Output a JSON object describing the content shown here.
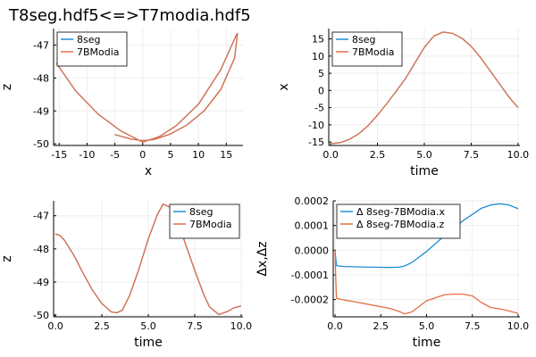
{
  "figure_title": "T8seg.hdf5<=>T7modia.hdf5",
  "colors": {
    "blue": "#1f8dd6",
    "orange": "#e36f47",
    "grid": "#eeeeee",
    "axis": "#000000"
  },
  "chart_data": [
    {
      "id": "p1",
      "type": "line",
      "title": "",
      "xlabel": "x",
      "ylabel": "z",
      "xlim": [
        -16,
        18
      ],
      "ylim": [
        -50.05,
        -46.5
      ],
      "xticks": [
        -15,
        -10,
        -5,
        0,
        5,
        10,
        15
      ],
      "yticks": [
        -50,
        -49,
        -48,
        -47
      ],
      "xtick_labels": [
        "-15",
        "-10",
        "-5",
        "0",
        "5",
        "10",
        "15"
      ],
      "ytick_labels": [
        "-50",
        "-49",
        "-48",
        "-47"
      ],
      "grid": true,
      "legend_position": "top-left",
      "series": [
        {
          "name": "8seg",
          "color": "#1f8dd6",
          "x": [
            -5.0,
            -2.0,
            0.0,
            2.0,
            5.0,
            8.0,
            11.0,
            14.0,
            16.5,
            17.0,
            16.8,
            14.0,
            10.0,
            6.0,
            3.0,
            0.0,
            -4.0,
            -8.0,
            -12.0,
            -15.5
          ],
          "y": [
            -49.72,
            -49.86,
            -49.9,
            -49.87,
            -49.7,
            -49.42,
            -49.0,
            -48.35,
            -47.4,
            -46.65,
            -46.7,
            -47.75,
            -48.8,
            -49.45,
            -49.78,
            -49.95,
            -49.6,
            -49.1,
            -48.4,
            -47.55
          ]
        },
        {
          "name": "7BModia",
          "color": "#e36f47",
          "x": [
            -5.0,
            -2.0,
            0.0,
            2.0,
            5.0,
            8.0,
            11.0,
            14.0,
            16.5,
            17.0,
            16.8,
            14.0,
            10.0,
            6.0,
            3.0,
            0.0,
            -4.0,
            -8.0,
            -12.0,
            -15.5
          ],
          "y": [
            -49.72,
            -49.86,
            -49.9,
            -49.87,
            -49.7,
            -49.42,
            -49.0,
            -48.35,
            -47.4,
            -46.65,
            -46.7,
            -47.75,
            -48.8,
            -49.45,
            -49.78,
            -49.95,
            -49.6,
            -49.1,
            -48.4,
            -47.55
          ]
        }
      ]
    },
    {
      "id": "p2",
      "type": "line",
      "title": "",
      "xlabel": "time",
      "ylabel": "x",
      "xlim": [
        -0.1,
        10.1
      ],
      "ylim": [
        -16,
        18
      ],
      "xticks": [
        0,
        2.5,
        5,
        7.5,
        10
      ],
      "yticks": [
        -15,
        -10,
        -5,
        0,
        5,
        10,
        15
      ],
      "xtick_labels": [
        "0.0",
        "2.5",
        "5.0",
        "7.5",
        "10.0"
      ],
      "ytick_labels": [
        "-15",
        "-10",
        "-5",
        "0",
        "5",
        "10",
        "15"
      ],
      "grid": true,
      "legend_position": "top-left",
      "series": [
        {
          "name": "8seg",
          "color": "#1f8dd6",
          "x": [
            0,
            0.5,
            1,
            1.5,
            2,
            2.5,
            3,
            3.5,
            4,
            4.5,
            5,
            5.5,
            6,
            6.5,
            7,
            7.5,
            8,
            8.5,
            9,
            9.5,
            10
          ],
          "y": [
            -15.5,
            -15.2,
            -14.2,
            -12.6,
            -10.2,
            -7.2,
            -3.8,
            -0.2,
            3.5,
            8.0,
            12.5,
            15.8,
            17.0,
            16.6,
            15.2,
            12.8,
            9.6,
            5.8,
            2.0,
            -1.8,
            -5.0
          ]
        },
        {
          "name": "7BModia",
          "color": "#e36f47",
          "x": [
            0,
            0.5,
            1,
            1.5,
            2,
            2.5,
            3,
            3.5,
            4,
            4.5,
            5,
            5.5,
            6,
            6.5,
            7,
            7.5,
            8,
            8.5,
            9,
            9.5,
            10
          ],
          "y": [
            -15.5,
            -15.2,
            -14.2,
            -12.6,
            -10.2,
            -7.2,
            -3.8,
            -0.2,
            3.5,
            8.0,
            12.5,
            15.8,
            17.0,
            16.6,
            15.2,
            12.8,
            9.6,
            5.8,
            2.0,
            -1.8,
            -5.0
          ]
        }
      ]
    },
    {
      "id": "p3",
      "type": "line",
      "title": "",
      "xlabel": "time",
      "ylabel": "z",
      "xlim": [
        -0.1,
        10.1
      ],
      "ylim": [
        -50.05,
        -46.55
      ],
      "xticks": [
        0,
        2.5,
        5,
        7.5,
        10
      ],
      "yticks": [
        -50,
        -49,
        -48,
        -47
      ],
      "xtick_labels": [
        "0.0",
        "2.5",
        "5.0",
        "7.5",
        "10.0"
      ],
      "ytick_labels": [
        "-50",
        "-49",
        "-48",
        "-47"
      ],
      "grid": true,
      "legend_position": "top-right",
      "series": [
        {
          "name": "8seg",
          "color": "#1f8dd6",
          "x": [
            0,
            0.25,
            0.5,
            1.0,
            1.5,
            2.0,
            2.5,
            3.0,
            3.3,
            3.6,
            4.0,
            4.5,
            5.0,
            5.5,
            5.8,
            6.2,
            6.6,
            7.0,
            7.5,
            8.0,
            8.3,
            8.8,
            9.3,
            9.6,
            10.0
          ],
          "y": [
            -47.55,
            -47.6,
            -47.75,
            -48.2,
            -48.75,
            -49.25,
            -49.65,
            -49.9,
            -49.93,
            -49.85,
            -49.4,
            -48.6,
            -47.7,
            -46.95,
            -46.65,
            -46.75,
            -47.2,
            -47.85,
            -48.65,
            -49.4,
            -49.75,
            -49.98,
            -49.88,
            -49.78,
            -49.72
          ]
        },
        {
          "name": "7BModia",
          "color": "#e36f47",
          "x": [
            0,
            0.25,
            0.5,
            1.0,
            1.5,
            2.0,
            2.5,
            3.0,
            3.3,
            3.6,
            4.0,
            4.5,
            5.0,
            5.5,
            5.8,
            6.2,
            6.6,
            7.0,
            7.5,
            8.0,
            8.3,
            8.8,
            9.3,
            9.6,
            10.0
          ],
          "y": [
            -47.55,
            -47.6,
            -47.75,
            -48.2,
            -48.75,
            -49.25,
            -49.65,
            -49.9,
            -49.93,
            -49.85,
            -49.4,
            -48.6,
            -47.7,
            -46.95,
            -46.65,
            -46.75,
            -47.2,
            -47.85,
            -48.65,
            -49.4,
            -49.75,
            -49.98,
            -49.88,
            -49.78,
            -49.72
          ]
        }
      ]
    },
    {
      "id": "p4",
      "type": "line",
      "title": "",
      "xlabel": "time",
      "ylabel": "Δx,Δz",
      "xlim": [
        -0.1,
        10.1
      ],
      "ylim": [
        -0.00027,
        0.0002
      ],
      "xticks": [
        0,
        2.5,
        5,
        7.5,
        10
      ],
      "yticks": [
        -0.0002,
        -0.0001,
        0,
        0.0001,
        0.0002
      ],
      "xtick_labels": [
        "0.0",
        "2.5",
        "5.0",
        "7.5",
        "10.0"
      ],
      "ytick_labels": [
        "-0.0002",
        "-0.0001",
        "0.0000",
        "0.0001",
        "0.0002"
      ],
      "grid": true,
      "legend_position": "top-left",
      "series": [
        {
          "name": "Δ 8seg-7BModia.x",
          "color": "#1f8dd6",
          "x": [
            0,
            0.03,
            0.08,
            0.5,
            1.0,
            2.0,
            3.0,
            3.5,
            3.8,
            4.2,
            5.0,
            6.0,
            7.0,
            8.0,
            8.5,
            9.0,
            9.5,
            10.0
          ],
          "y": [
            0.0,
            -3e-05,
            -6.3e-05,
            -6.6e-05,
            -6.7e-05,
            -6.9e-05,
            -7e-05,
            -6.9e-05,
            -6.4e-05,
            -5e-05,
            -5e-06,
            6e-05,
            0.00012,
            0.00017,
            0.000183,
            0.000188,
            0.000183,
            0.000168
          ]
        },
        {
          "name": "Δ 8seg-7BModia.z",
          "color": "#e36f47",
          "x": [
            0,
            0.03,
            0.08,
            0.5,
            1.0,
            2.0,
            3.0,
            3.5,
            3.8,
            4.2,
            5.0,
            6.0,
            6.5,
            7.0,
            7.5,
            8.0,
            8.5,
            9.0,
            9.5,
            10.0
          ],
          "y": [
            0.0,
            -0.0001,
            -0.000195,
            -0.000202,
            -0.000208,
            -0.000222,
            -0.000236,
            -0.000248,
            -0.000258,
            -0.00025,
            -0.000205,
            -0.00018,
            -0.000178,
            -0.000178,
            -0.000185,
            -0.000212,
            -0.000232,
            -0.000238,
            -0.000246,
            -0.000256
          ]
        }
      ]
    }
  ]
}
